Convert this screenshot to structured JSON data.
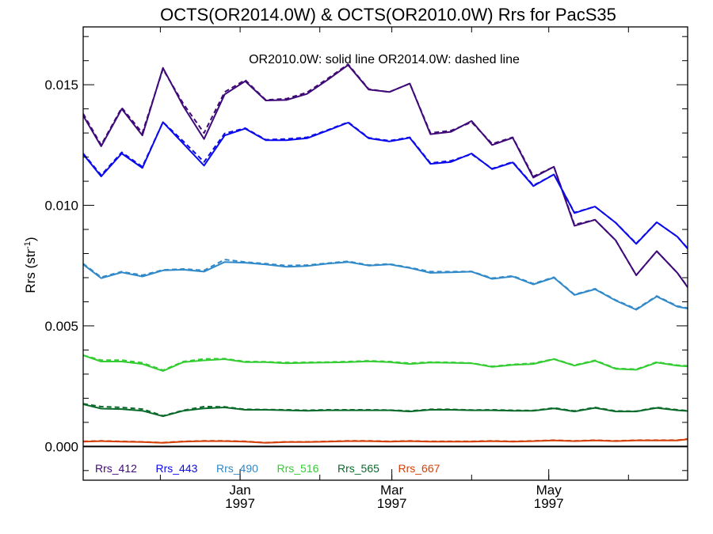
{
  "chart_data": {
    "type": "line",
    "title": "OCTS(OR2014.0W) & OCTS(OR2010.0W)  Rrs for PacS35",
    "annotation": "OR2010.0W: solid line   OR2014.0W: dashed line",
    "ylabel_main": "Rrs (str",
    "ylabel_sup": "-1",
    "ylabel_end": ")",
    "xlabel": "",
    "ylim": [
      -0.0014,
      0.0174
    ],
    "y_ticks": [
      0.0,
      0.005,
      0.01,
      0.015
    ],
    "y_tick_labels": [
      "0.000",
      "0.005",
      "0.010",
      "0.015"
    ],
    "xlim": [
      "1996-11-01",
      "1997-06-24"
    ],
    "x_ticks": [
      {
        "date": "1997-01-01",
        "label": "Jan",
        "year": "1997"
      },
      {
        "date": "1997-03-01",
        "label": "Mar",
        "year": "1997"
      },
      {
        "date": "1997-05-01",
        "label": "May",
        "year": "1997"
      }
    ],
    "x": [
      "1996-11-01",
      "1996-11-08",
      "1996-11-16",
      "1996-11-24",
      "1996-12-02",
      "1996-12-10",
      "1996-12-18",
      "1996-12-26",
      "1997-01-03",
      "1997-01-11",
      "1997-01-19",
      "1997-01-27",
      "1997-02-04",
      "1997-02-12",
      "1997-02-20",
      "1997-02-28",
      "1997-03-08",
      "1997-03-16",
      "1997-03-24",
      "1997-04-01",
      "1997-04-09",
      "1997-04-17",
      "1997-04-25",
      "1997-05-03",
      "1997-05-11",
      "1997-05-19",
      "1997-05-27",
      "1997-06-04",
      "1997-06-12",
      "1997-06-20",
      "1997-06-24"
    ],
    "series": [
      {
        "name": "Rrs_412",
        "color": "#3f0a78",
        "solid": [
          0.01372,
          0.01245,
          0.014,
          0.0129,
          0.0157,
          0.0141,
          0.01275,
          0.0146,
          0.01515,
          0.01435,
          0.01437,
          0.01462,
          0.0152,
          0.01582,
          0.0148,
          0.0147,
          0.01505,
          0.01295,
          0.01305,
          0.0135,
          0.0125,
          0.0128,
          0.01115,
          0.0116,
          0.00915,
          0.0094,
          0.00855,
          0.0071,
          0.0081,
          0.0072,
          0.0066
        ],
        "dashed": [
          0.0138,
          0.0125,
          0.01405,
          0.013,
          0.01565,
          0.0142,
          0.013,
          0.0147,
          0.0152,
          0.01437,
          0.01442,
          0.01468,
          0.01525,
          0.01585,
          0.01482,
          0.0147,
          0.01505,
          0.013,
          0.0131,
          0.01345,
          0.01255,
          0.01282,
          0.0112,
          0.0116,
          0.0092,
          0.0094,
          0.00855,
          0.0071,
          0.0081,
          0.0072,
          0.00662
        ]
      },
      {
        "name": "Rrs_443",
        "color": "#0a0aea",
        "solid": [
          0.01212,
          0.0112,
          0.01215,
          0.01155,
          0.01345,
          0.01255,
          0.01165,
          0.0129,
          0.01318,
          0.0127,
          0.0127,
          0.01278,
          0.0131,
          0.01343,
          0.01278,
          0.01265,
          0.0128,
          0.01172,
          0.0118,
          0.01215,
          0.0115,
          0.01178,
          0.0108,
          0.01128,
          0.00968,
          0.00995,
          0.00928,
          0.0084,
          0.0093,
          0.0087,
          0.0082
        ],
        "dashed": [
          0.01215,
          0.01125,
          0.0122,
          0.0116,
          0.01345,
          0.01265,
          0.0118,
          0.01298,
          0.0132,
          0.01272,
          0.01275,
          0.01282,
          0.01312,
          0.01345,
          0.0128,
          0.01268,
          0.01282,
          0.01175,
          0.01185,
          0.01212,
          0.01152,
          0.0118,
          0.01082,
          0.01128,
          0.0097,
          0.00995,
          0.00928,
          0.00842,
          0.0093,
          0.0087,
          0.00822
        ]
      },
      {
        "name": "Rrs_490",
        "color": "#3089c8",
        "solid": [
          0.00755,
          0.00698,
          0.00722,
          0.00705,
          0.0073,
          0.00733,
          0.00725,
          0.00765,
          0.00762,
          0.00755,
          0.00745,
          0.00748,
          0.00758,
          0.00765,
          0.0075,
          0.00755,
          0.0074,
          0.0072,
          0.00722,
          0.00725,
          0.00695,
          0.00705,
          0.00672,
          0.007,
          0.00628,
          0.00652,
          0.00605,
          0.00567,
          0.00622,
          0.0058,
          0.00572
        ],
        "dashed": [
          0.00758,
          0.00702,
          0.00725,
          0.0071,
          0.00732,
          0.00736,
          0.0073,
          0.00775,
          0.00765,
          0.00758,
          0.0075,
          0.00752,
          0.0076,
          0.00768,
          0.00752,
          0.00757,
          0.00742,
          0.00725,
          0.00725,
          0.00726,
          0.00698,
          0.00707,
          0.00675,
          0.00702,
          0.0063,
          0.00654,
          0.00607,
          0.0057,
          0.00624,
          0.00582,
          0.00574
        ]
      },
      {
        "name": "Rrs_516",
        "color": "#33cc33",
        "solid": [
          0.00378,
          0.00352,
          0.00352,
          0.00342,
          0.00313,
          0.0035,
          0.00357,
          0.00362,
          0.0035,
          0.0035,
          0.00345,
          0.00347,
          0.00348,
          0.0035,
          0.00353,
          0.0035,
          0.00342,
          0.00348,
          0.00347,
          0.00345,
          0.0033,
          0.00338,
          0.00342,
          0.00362,
          0.00335,
          0.00355,
          0.00322,
          0.00318,
          0.00348,
          0.00335,
          0.00332
        ],
        "dashed": [
          0.00378,
          0.00358,
          0.00358,
          0.00347,
          0.00316,
          0.00352,
          0.00363,
          0.00364,
          0.00352,
          0.00351,
          0.00348,
          0.00349,
          0.0035,
          0.00352,
          0.00355,
          0.00352,
          0.00345,
          0.0035,
          0.00349,
          0.00346,
          0.00332,
          0.0034,
          0.00345,
          0.00363,
          0.00337,
          0.00357,
          0.00324,
          0.0032,
          0.0035,
          0.00337,
          0.00334
        ]
      },
      {
        "name": "Rrs_565",
        "color": "#0a6a2a",
        "solid": [
          0.00175,
          0.00157,
          0.00155,
          0.00148,
          0.00125,
          0.00148,
          0.00158,
          0.00162,
          0.00152,
          0.00152,
          0.0015,
          0.00148,
          0.0015,
          0.0015,
          0.0015,
          0.0015,
          0.00145,
          0.00152,
          0.00152,
          0.0015,
          0.0015,
          0.00148,
          0.00148,
          0.00158,
          0.00145,
          0.0016,
          0.00145,
          0.00145,
          0.0016,
          0.0015,
          0.00147
        ],
        "dashed": [
          0.00177,
          0.00165,
          0.00162,
          0.00155,
          0.00127,
          0.0015,
          0.00165,
          0.00164,
          0.00154,
          0.00153,
          0.00152,
          0.0015,
          0.00152,
          0.00152,
          0.00152,
          0.00151,
          0.00147,
          0.00154,
          0.00154,
          0.00151,
          0.00152,
          0.0015,
          0.00149,
          0.0016,
          0.00147,
          0.00162,
          0.00147,
          0.00146,
          0.00162,
          0.00152,
          0.00148
        ]
      },
      {
        "name": "Rrs_667",
        "color": "#d4400a",
        "solid": [
          0.0002,
          0.00022,
          0.0002,
          0.00018,
          0.00015,
          0.0002,
          0.00022,
          0.00022,
          0.0002,
          0.00015,
          0.00018,
          0.00018,
          0.0002,
          0.00022,
          0.00022,
          0.0002,
          0.00022,
          0.0002,
          0.0002,
          0.0002,
          0.00022,
          0.0002,
          0.00022,
          0.00025,
          0.00022,
          0.00025,
          0.00022,
          0.00025,
          0.00025,
          0.00025,
          0.0003
        ],
        "dashed": [
          0.00021,
          0.00023,
          0.00021,
          0.00019,
          0.00016,
          0.00021,
          0.00023,
          0.00023,
          0.00021,
          0.00016,
          0.00019,
          0.00019,
          0.00021,
          0.00023,
          0.00023,
          0.00021,
          0.00023,
          0.00021,
          0.00021,
          0.00021,
          0.00023,
          0.00021,
          0.00023,
          0.00026,
          0.00023,
          0.00026,
          0.00023,
          0.00026,
          0.00026,
          0.00026,
          0.00031
        ]
      }
    ],
    "legend_position": "bottom-left",
    "grid": false
  }
}
